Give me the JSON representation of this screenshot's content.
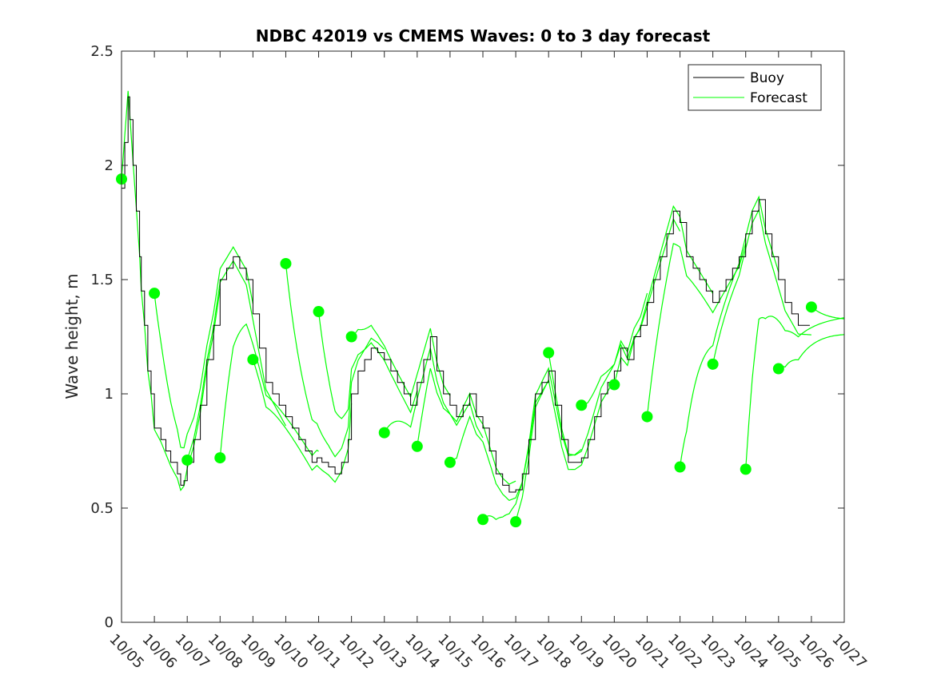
{
  "chart_data": {
    "type": "line",
    "title": "NDBC 42019 vs CMEMS Waves: 0 to 3 day forecast",
    "xlabel": "",
    "ylabel": "Wave height, m",
    "xlim": [
      "10/05",
      "10/27"
    ],
    "ylim": [
      0,
      2.5
    ],
    "x_ticks": [
      "10/05",
      "10/06",
      "10/07",
      "10/08",
      "10/09",
      "10/10",
      "10/11",
      "10/12",
      "10/13",
      "10/14",
      "10/15",
      "10/16",
      "10/17",
      "10/18",
      "10/19",
      "10/20",
      "10/21",
      "10/22",
      "10/23",
      "10/24",
      "10/25",
      "10/26",
      "10/27"
    ],
    "y_ticks": [
      "0",
      "0.5",
      "1",
      "1.5",
      "2",
      "2.5"
    ],
    "grid": false,
    "legend_position": "top-right",
    "colors": {
      "buoy": "#000000",
      "forecast": "#00ff00",
      "axis": "#262626"
    },
    "legend": [
      {
        "label": "Buoy",
        "color": "#000000"
      },
      {
        "label": "Forecast",
        "color": "#00ff00"
      }
    ],
    "buoy_series": {
      "name": "Buoy",
      "x": [
        0,
        0.1,
        0.2,
        0.25,
        0.35,
        0.45,
        0.55,
        0.6,
        0.7,
        0.8,
        0.9,
        1.0,
        1.2,
        1.35,
        1.5,
        1.7,
        1.8,
        1.9,
        2.0,
        2.2,
        2.4,
        2.6,
        2.8,
        3.0,
        3.2,
        3.4,
        3.6,
        3.8,
        4.0,
        4.2,
        4.4,
        4.6,
        4.8,
        5.0,
        5.2,
        5.4,
        5.6,
        5.8,
        5.95,
        6.1,
        6.3,
        6.5,
        6.7,
        6.9,
        7.0,
        7.2,
        7.4,
        7.6,
        7.8,
        8.0,
        8.2,
        8.4,
        8.6,
        8.8,
        9.0,
        9.2,
        9.4,
        9.6,
        9.8,
        10.0,
        10.2,
        10.4,
        10.6,
        10.8,
        11.0,
        11.2,
        11.4,
        11.6,
        11.8,
        12.0,
        12.2,
        12.4,
        12.6,
        12.8,
        13.0,
        13.2,
        13.4,
        13.6,
        13.8,
        14.0,
        14.2,
        14.4,
        14.6,
        14.8,
        15.0,
        15.2,
        15.4,
        15.6,
        15.8,
        16.0,
        16.2,
        16.4,
        16.6,
        16.8,
        17.0,
        17.2,
        17.4,
        17.6,
        17.8,
        18.0,
        18.2,
        18.4,
        18.6,
        18.8,
        19.0,
        19.2,
        19.4,
        19.6,
        19.8,
        20.0,
        20.2,
        20.4,
        20.6,
        20.8,
        20.95
      ],
      "y": [
        1.9,
        2.1,
        2.3,
        2.2,
        2.0,
        1.8,
        1.6,
        1.45,
        1.3,
        1.1,
        1.0,
        0.85,
        0.8,
        0.75,
        0.7,
        0.65,
        0.6,
        0.62,
        0.7,
        0.8,
        0.95,
        1.15,
        1.3,
        1.5,
        1.55,
        1.6,
        1.55,
        1.5,
        1.35,
        1.2,
        1.05,
        1.0,
        0.95,
        0.9,
        0.85,
        0.8,
        0.75,
        0.7,
        0.72,
        0.7,
        0.68,
        0.65,
        0.7,
        0.8,
        1.0,
        1.1,
        1.15,
        1.2,
        1.18,
        1.15,
        1.1,
        1.05,
        1.0,
        0.95,
        1.05,
        1.15,
        1.25,
        1.1,
        1.0,
        0.95,
        0.9,
        0.95,
        1.0,
        0.9,
        0.85,
        0.75,
        0.65,
        0.6,
        0.57,
        0.58,
        0.65,
        0.8,
        1.0,
        1.05,
        1.1,
        0.95,
        0.8,
        0.7,
        0.7,
        0.72,
        0.8,
        0.9,
        1.0,
        1.05,
        1.1,
        1.2,
        1.15,
        1.25,
        1.3,
        1.4,
        1.5,
        1.6,
        1.7,
        1.8,
        1.75,
        1.6,
        1.55,
        1.5,
        1.45,
        1.4,
        1.45,
        1.5,
        1.55,
        1.6,
        1.7,
        1.8,
        1.85,
        1.7,
        1.6,
        1.5,
        1.4,
        1.35,
        1.3,
        1.3,
        1.3
      ]
    },
    "forecast_dots": {
      "name": "Forecast",
      "x": [
        0,
        1,
        2,
        3,
        4,
        5,
        6,
        7,
        8,
        9,
        10,
        11,
        12,
        13,
        14,
        15,
        16,
        17,
        18,
        19,
        20,
        21
      ],
      "y": [
        1.94,
        1.44,
        0.71,
        0.72,
        1.15,
        1.57,
        1.36,
        1.25,
        0.83,
        0.77,
        0.7,
        0.45,
        0.44,
        1.18,
        0.95,
        1.04,
        0.9,
        0.68,
        1.13,
        0.67,
        1.11,
        1.38
      ]
    }
  }
}
